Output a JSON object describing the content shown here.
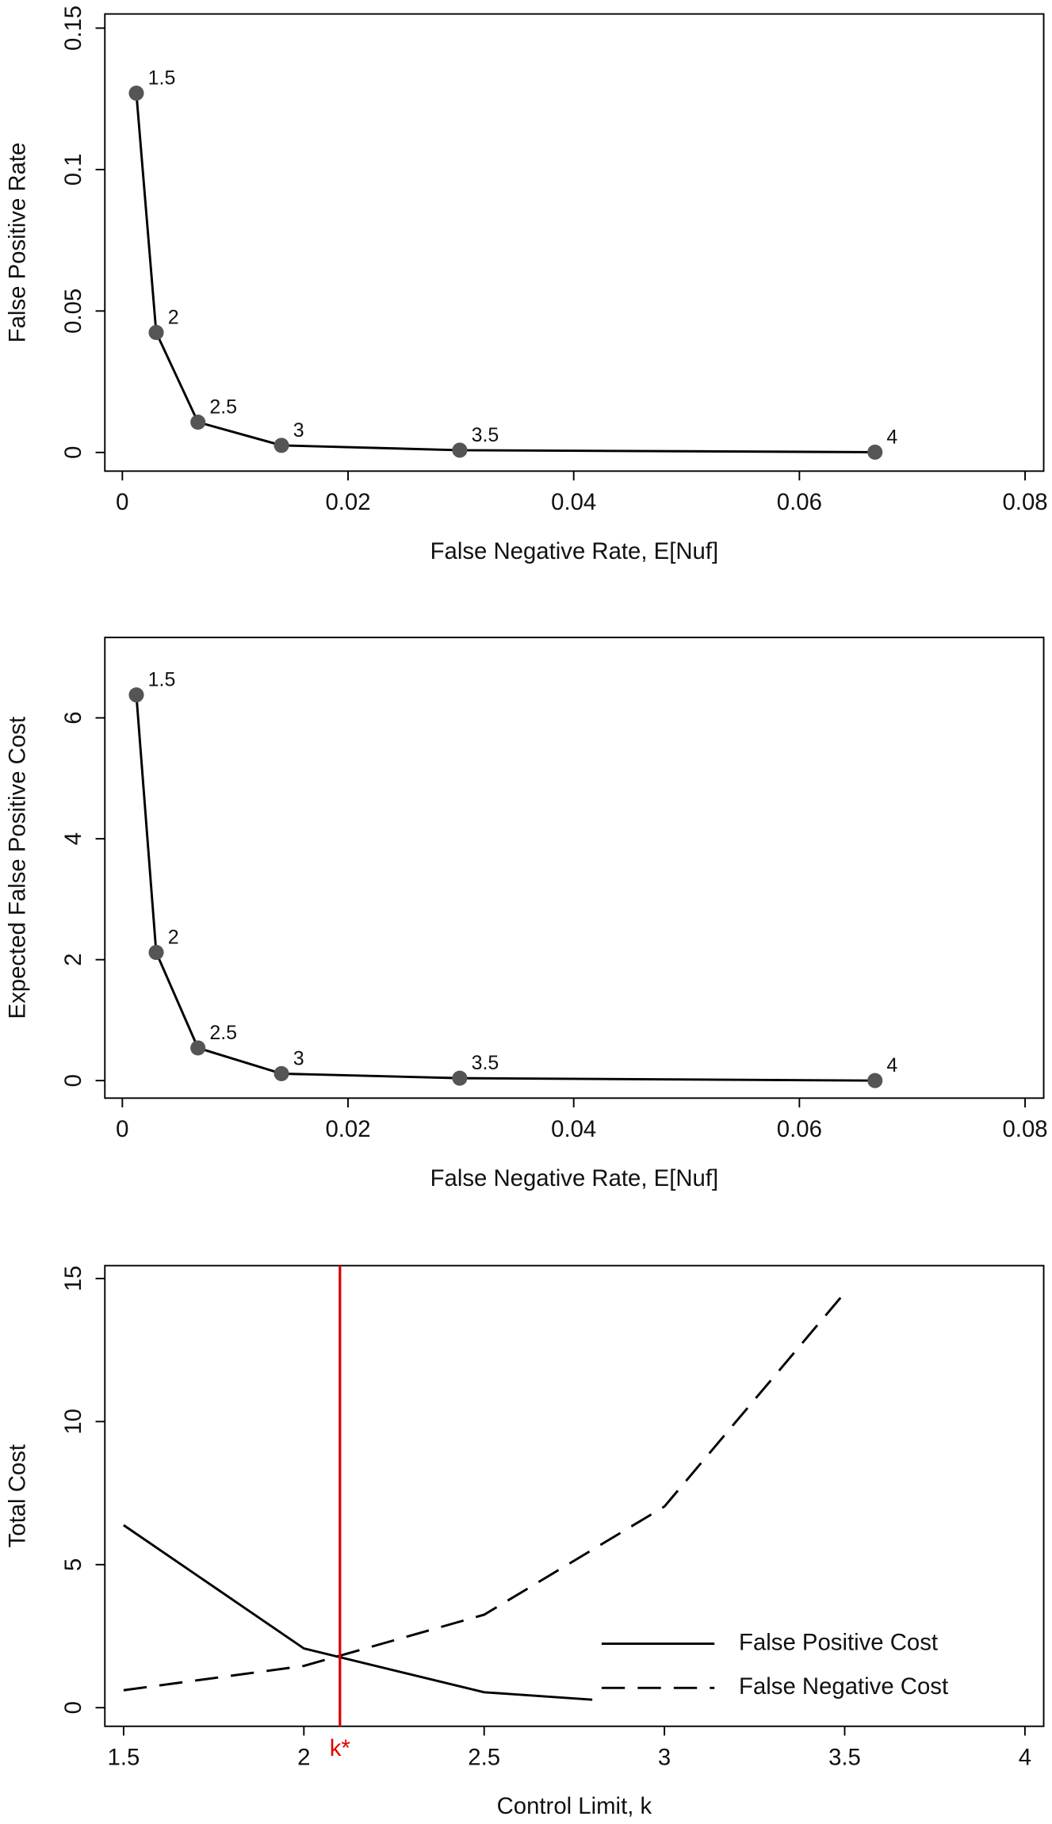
{
  "chart_data": [
    {
      "type": "line",
      "xlabel": "False Negative Rate, E[Nuf]",
      "ylabel": "False Positive Rate",
      "x": [
        0.00124,
        0.003,
        0.0067,
        0.0141,
        0.0299,
        0.0667
      ],
      "values": [
        0.127,
        0.0424,
        0.0107,
        0.0025,
        0.0008,
        0.0001
      ],
      "point_labels": [
        "1.5",
        "2",
        "2.5",
        "3",
        "3.5",
        "4"
      ],
      "color": "#000000",
      "marker_color": "#555555",
      "xlim": [
        -0.00155,
        0.08165
      ],
      "xticks": [
        0,
        0.02,
        0.04,
        0.06,
        0.08
      ],
      "ylim": [
        -0.0066,
        0.155
      ],
      "yticks": [
        0,
        0.05,
        0.1,
        0.15
      ]
    },
    {
      "type": "line",
      "xlabel": "False Negative Rate, E[Nuf]",
      "ylabel": "Expected False Positive Cost",
      "x": [
        0.00124,
        0.003,
        0.0067,
        0.0141,
        0.0299,
        0.0667
      ],
      "values": [
        6.38,
        2.12,
        0.54,
        0.115,
        0.04,
        0
      ],
      "point_labels": [
        "1.5",
        "2",
        "2.5",
        "3",
        "3.5",
        "4"
      ],
      "color": "#000000",
      "marker_color": "#555555",
      "xlim": [
        -0.00155,
        0.08165
      ],
      "xticks": [
        0,
        0.02,
        0.04,
        0.06,
        0.08
      ],
      "ylim": [
        -0.29,
        7.33
      ],
      "yticks": [
        0,
        2,
        4,
        6
      ]
    },
    {
      "type": "multiline",
      "xlabel": "Control Limit, k",
      "ylabel": "Total Cost",
      "series": [
        {
          "name": "False Positive Cost",
          "color": "#000000",
          "style": "solid",
          "x": [
            1.5,
            2,
            2.5,
            2.8
          ],
          "values": [
            6.38,
            2.07,
            0.54,
            0.28
          ]
        },
        {
          "name": "False Negative Cost",
          "color": "#000000",
          "style": "dashed",
          "x": [
            1.5,
            2,
            2.5,
            3,
            3.5
          ],
          "values": [
            0.61,
            1.46,
            3.25,
            7.03,
            14.5
          ]
        }
      ],
      "vline": {
        "value": 2.1,
        "label": "k*",
        "color": "#e00000"
      },
      "legend": "bottom-right",
      "xlim": [
        1.448,
        4.052
      ],
      "xticks": [
        1.5,
        2,
        2.5,
        3,
        3.5,
        4
      ],
      "ylim": [
        -0.65,
        15.45
      ],
      "yticks": [
        0,
        5,
        10,
        15
      ]
    }
  ]
}
